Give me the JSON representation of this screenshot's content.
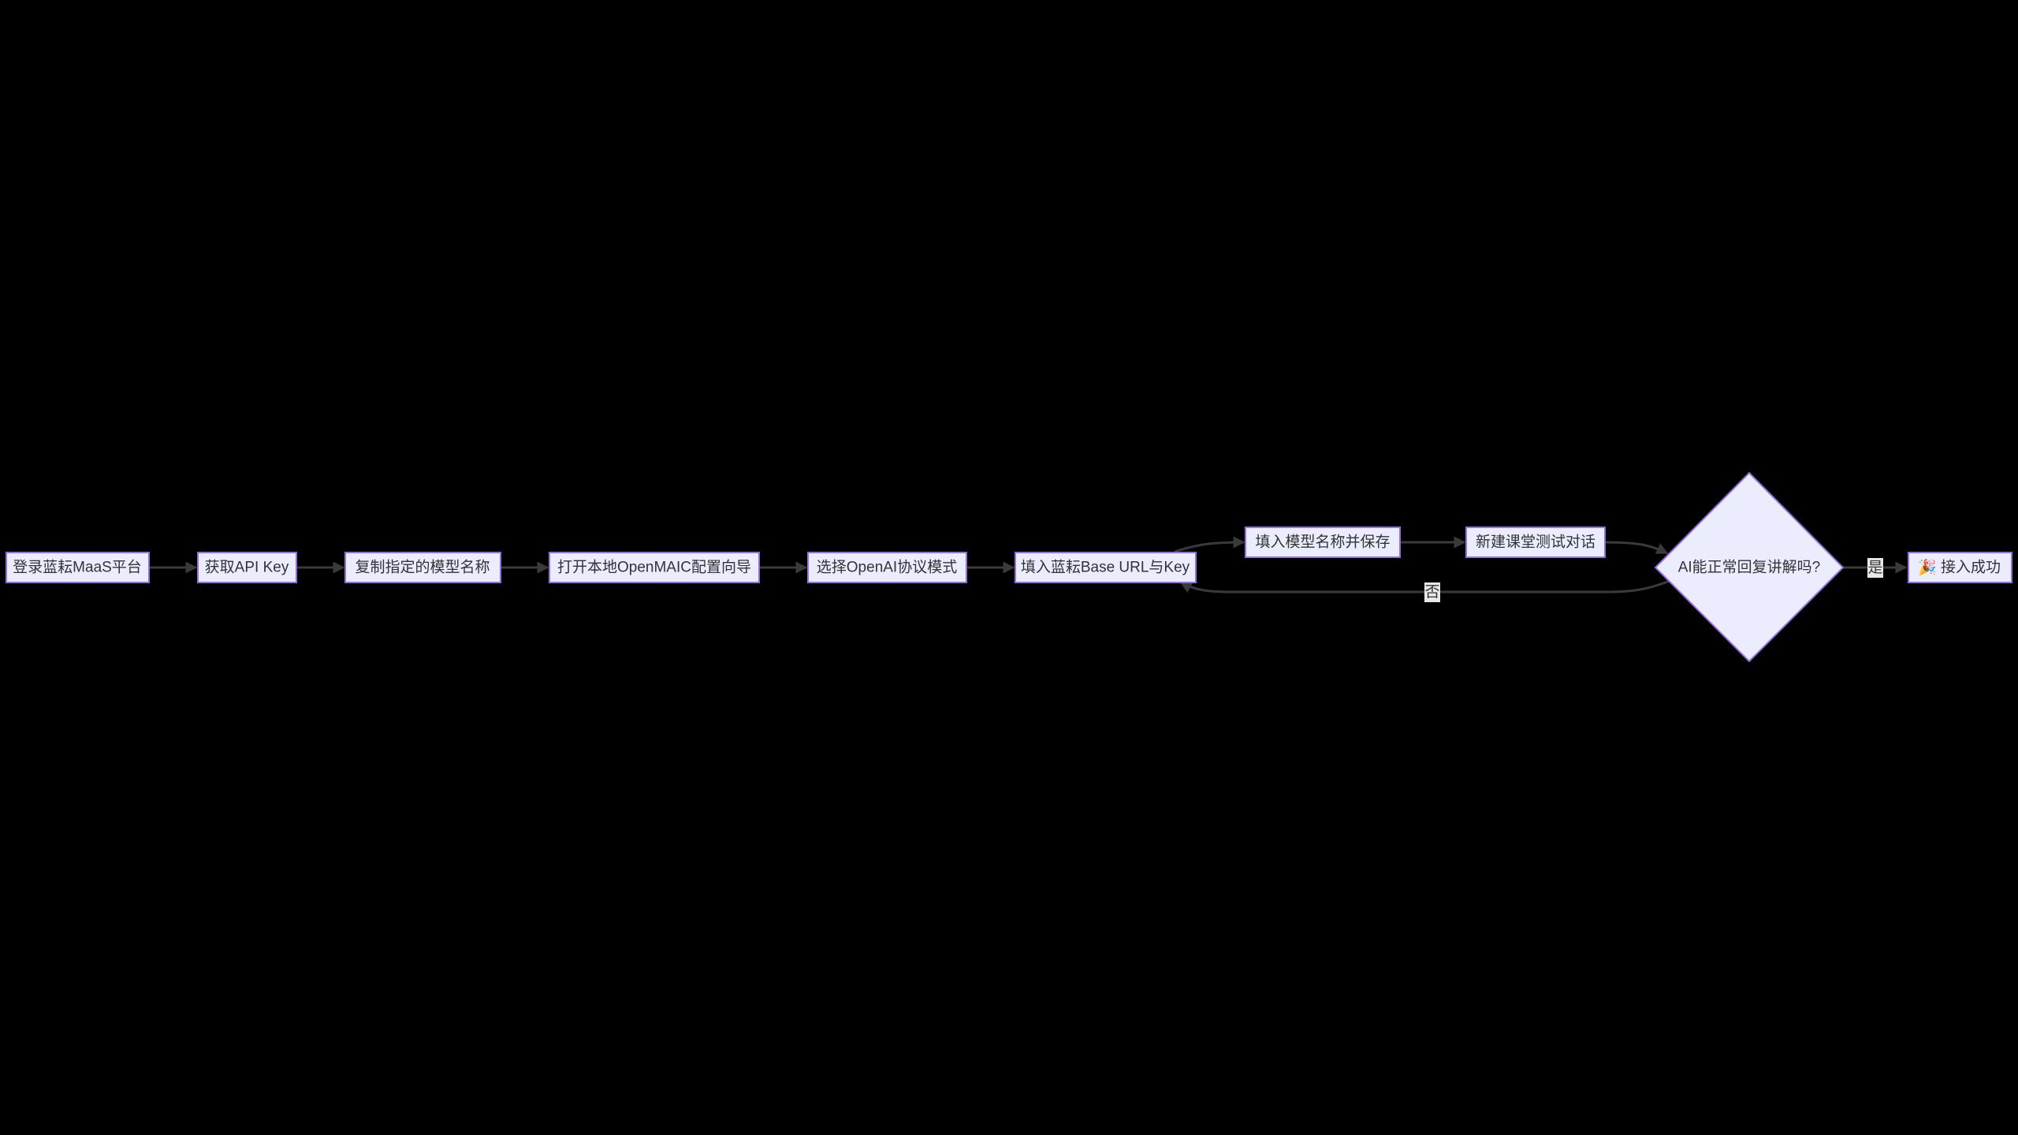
{
  "diagram": {
    "type": "flowchart",
    "direction": "left-to-right",
    "colors": {
      "background": "#000000",
      "node_fill": "#ECECFF",
      "node_border": "#9370DB",
      "edge": "#3a3a3a",
      "text": "#333333"
    },
    "nodes": [
      {
        "id": "A",
        "label": "登录蓝耘MaaS平台"
      },
      {
        "id": "B",
        "label": "获取API Key"
      },
      {
        "id": "C",
        "label": "复制指定的模型名称"
      },
      {
        "id": "D",
        "label": "打开本地OpenMAIC配置向导"
      },
      {
        "id": "E",
        "label": "选择OpenAI协议模式"
      },
      {
        "id": "F",
        "label": "填入蓝耘Base URL与Key"
      },
      {
        "id": "G",
        "label": "填入模型名称并保存"
      },
      {
        "id": "H",
        "label": "新建课堂测试对话"
      },
      {
        "id": "I",
        "label": "AI能正常回复讲解吗?",
        "shape": "diamond"
      },
      {
        "id": "J",
        "label": "接入成功",
        "icon": "party-popper-icon"
      }
    ],
    "edges": [
      {
        "from": "A",
        "to": "B"
      },
      {
        "from": "B",
        "to": "C"
      },
      {
        "from": "C",
        "to": "D"
      },
      {
        "from": "D",
        "to": "E"
      },
      {
        "from": "E",
        "to": "F"
      },
      {
        "from": "F",
        "to": "G"
      },
      {
        "from": "G",
        "to": "H"
      },
      {
        "from": "H",
        "to": "I"
      },
      {
        "from": "I",
        "to": "J",
        "label": "是"
      },
      {
        "from": "I",
        "to": "F",
        "label": "否"
      }
    ]
  }
}
